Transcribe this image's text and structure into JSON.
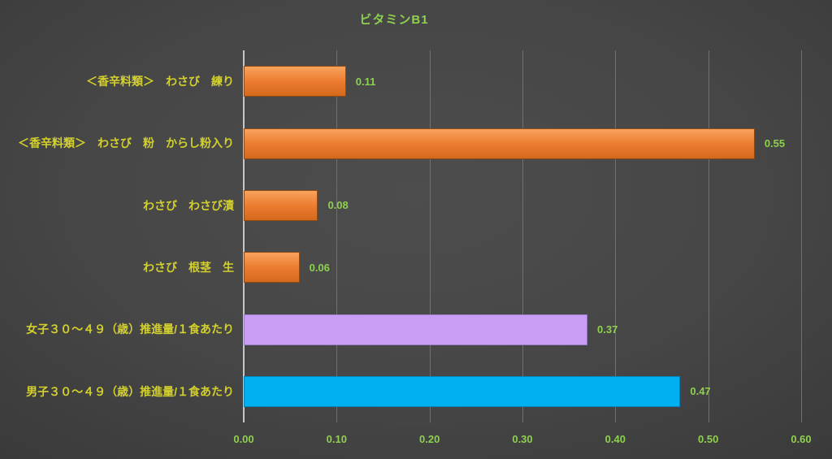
{
  "chart_data": {
    "type": "bar",
    "orientation": "horizontal",
    "title": "ビタミンB1",
    "categories": [
      "＜香辛料類＞　わさび　練り",
      "＜香辛料類＞　わさび　粉　からし粉入り",
      "わさび　わさび漬",
      "わさび　根茎　生",
      "女子３０～４９（歳）推進量/１食あたり",
      "男子３０～４９（歳）推進量/１食あたり"
    ],
    "values": [
      0.11,
      0.55,
      0.08,
      0.06,
      0.37,
      0.47
    ],
    "value_labels": [
      "0.11",
      "0.55",
      "0.08",
      "0.06",
      "0.37",
      "0.47"
    ],
    "bar_colors": [
      "orange",
      "orange",
      "orange",
      "orange",
      "purple",
      "cyan"
    ],
    "xlabel": "",
    "ylabel": "",
    "xlim": [
      0,
      0.6
    ],
    "x_ticks": [
      "0.00",
      "0.10",
      "0.20",
      "0.30",
      "0.40",
      "0.50",
      "0.60"
    ],
    "grid": true,
    "legend": false,
    "colors": {
      "title_green": "#8ed04f",
      "label_yellow": "#d3d02c",
      "gridline": "#707070",
      "axis_line": "#c6c6c6",
      "background": "#3f3f3f"
    },
    "bar_styles": {
      "orange": {
        "fill": "#ec7c30",
        "light": "#f8a35e",
        "dark": "#d4691c",
        "border": "#8e4a12"
      },
      "purple": {
        "fill": "#c99df3",
        "border": "#9f7fc4"
      },
      "cyan": {
        "fill": "#00b0f0",
        "border": "#0086bd"
      }
    }
  }
}
